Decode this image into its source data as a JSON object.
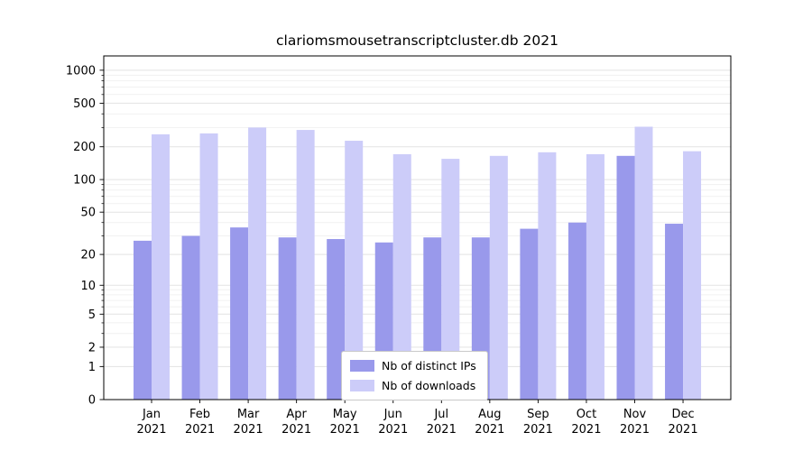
{
  "chart_data": {
    "type": "bar",
    "title": "clariomsmousetranscriptcluster.db 2021",
    "categories": [
      "Jan 2021",
      "Feb 2021",
      "Mar 2021",
      "Apr 2021",
      "May 2021",
      "Jun 2021",
      "Jul 2021",
      "Aug 2021",
      "Sep 2021",
      "Oct 2021",
      "Nov 2021",
      "Dec 2021"
    ],
    "series": [
      {
        "name": "Nb of distinct IPs",
        "color": "#9999eb",
        "values": [
          27,
          30,
          36,
          29,
          28,
          26,
          29,
          29,
          35,
          40,
          165,
          39
        ]
      },
      {
        "name": "Nb of downloads",
        "color": "#ccccf9",
        "values": [
          260,
          265,
          300,
          285,
          227,
          171,
          155,
          165,
          178,
          171,
          305,
          182
        ]
      }
    ],
    "yscale": "log10(value+1)",
    "yticks": [
      0,
      1,
      2,
      5,
      10,
      20,
      50,
      100,
      200,
      500,
      1000
    ],
    "y_minor_ticks": [
      3,
      4,
      6,
      7,
      8,
      9,
      30,
      40,
      60,
      70,
      80,
      90,
      300,
      400,
      600,
      700,
      800,
      900
    ],
    "ylim": [
      0,
      1350
    ],
    "xlabel": "",
    "ylabel": "",
    "grid": true,
    "legend_position": "lower center",
    "axis_color": "#000000",
    "gridline_color": "#e3e3e3",
    "minor_gridline_color": "#f1f1f1"
  }
}
